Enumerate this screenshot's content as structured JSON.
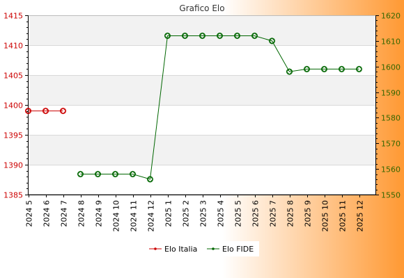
{
  "chart_data": {
    "type": "line",
    "title": "Grafico Elo",
    "categories": [
      "2024 5",
      "2024 6",
      "2024 7",
      "2024 8",
      "2024 9",
      "2024 10",
      "2024 11",
      "2024 12",
      "2025 1",
      "2025 2",
      "2025 3",
      "2025 4",
      "2025 5",
      "2025 6",
      "2025 7",
      "2025 8",
      "2025 9",
      "2025 10",
      "2025 11",
      "2025 12"
    ],
    "y_left": {
      "min": 1385,
      "max": 1415,
      "ticks": [
        1385,
        1390,
        1395,
        1400,
        1405,
        1410,
        1415
      ],
      "color": "#cc0000"
    },
    "y_right": {
      "min": 1550,
      "max": 1620,
      "ticks": [
        1550,
        1560,
        1570,
        1580,
        1590,
        1600,
        1610,
        1620
      ],
      "color": "#336600"
    },
    "series": [
      {
        "name": "Elo Italia",
        "axis": "left",
        "color": "#cc0000",
        "values": [
          1399,
          1399,
          1399,
          null,
          null,
          null,
          null,
          null,
          null,
          null,
          null,
          null,
          null,
          null,
          null,
          null,
          null,
          null,
          null,
          null
        ]
      },
      {
        "name": "Elo FIDE",
        "axis": "right",
        "color": "#006600",
        "values": [
          null,
          null,
          null,
          1558,
          1558,
          1558,
          1558,
          1556,
          1612,
          1612,
          1612,
          1612,
          1612,
          1612,
          1610,
          1598,
          1599,
          1599,
          1599,
          1599
        ]
      }
    ],
    "grid": true,
    "legend_position": "bottom-center"
  },
  "colors": {
    "background_left": "#ffffff",
    "background_right": "#ff9933",
    "band_gray": "#f2f2f2",
    "band_white": "#ffffff"
  }
}
